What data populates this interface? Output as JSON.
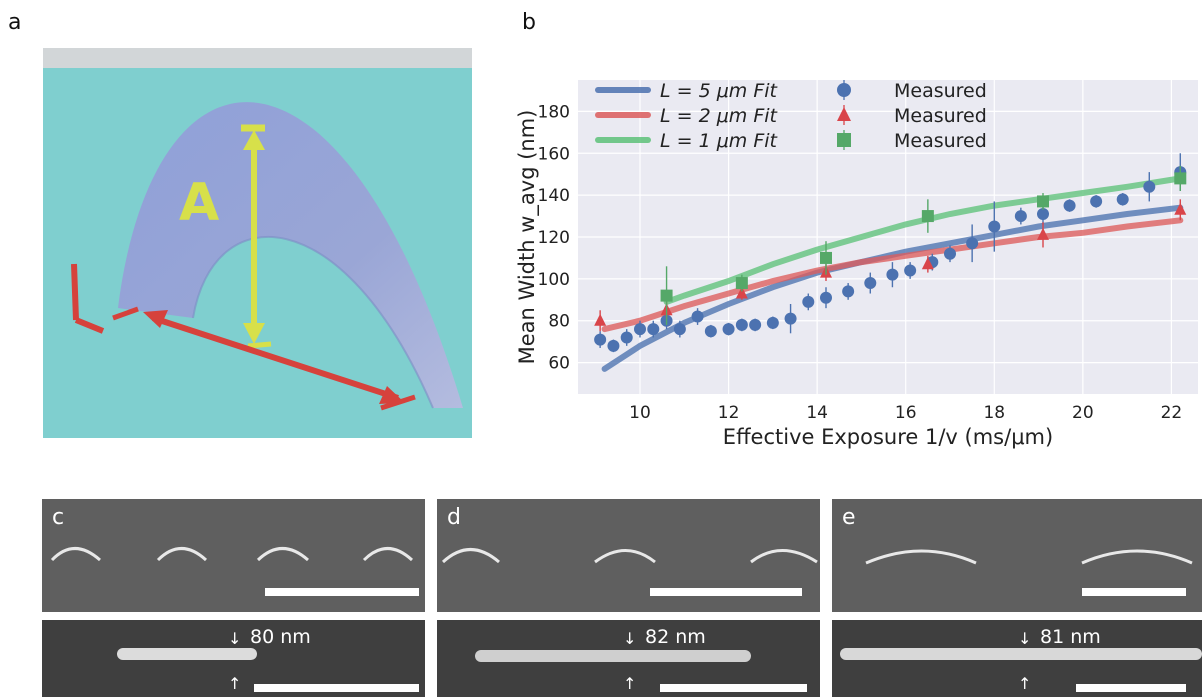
{
  "panels": {
    "a": "a",
    "b": "b",
    "c": "c",
    "d": "d",
    "e": "e"
  },
  "render": {
    "label_A": "A",
    "label_L": "L"
  },
  "chart_data": {
    "type": "scatter",
    "xlabel": "Effective Exposure 1/v (ms/μm)",
    "ylabel": "Mean Width w_avg (nm)",
    "xlim": [
      8.6,
      22.6
    ],
    "ylim": [
      45,
      195
    ],
    "xticks": [
      10,
      12,
      14,
      16,
      18,
      20,
      22
    ],
    "yticks": [
      60,
      80,
      100,
      120,
      140,
      160,
      180
    ],
    "grid": true,
    "legend_position": "top-left",
    "fits": [
      {
        "name": "L = 5 μm Fit",
        "color": "#4c72b0",
        "x": [
          9.2,
          10,
          11,
          12,
          13,
          14,
          15,
          16,
          17,
          18,
          19,
          20,
          21,
          22.2
        ],
        "y": [
          57,
          68,
          79,
          88,
          96,
          103,
          108,
          113,
          117,
          121,
          125,
          128,
          131,
          134
        ]
      },
      {
        "name": "L = 2 μm Fit",
        "color": "#dd5c5c",
        "x": [
          9.2,
          10,
          11,
          12,
          13,
          14,
          15,
          16,
          17,
          18,
          19,
          20,
          21,
          22.2
        ],
        "y": [
          76,
          80,
          87,
          93,
          99,
          104,
          108,
          111,
          114,
          117,
          120,
          122,
          125,
          128
        ]
      },
      {
        "name": "L = 1 μm Fit",
        "color": "#5ec27a",
        "x": [
          10.6,
          11,
          12,
          13,
          14,
          15,
          16,
          17,
          18,
          19,
          20,
          21,
          22.2
        ],
        "y": [
          89,
          92,
          99,
          107,
          114,
          120,
          126,
          131,
          135,
          138,
          141,
          144,
          148
        ]
      }
    ],
    "series": [
      {
        "name": "Measured",
        "marker": "circle",
        "color": "#4c72b0",
        "points": [
          {
            "x": 9.1,
            "y": 71,
            "err": 4
          },
          {
            "x": 9.4,
            "y": 68,
            "err": 3
          },
          {
            "x": 9.7,
            "y": 72,
            "err": 4
          },
          {
            "x": 10.0,
            "y": 76,
            "err": 4
          },
          {
            "x": 10.3,
            "y": 76,
            "err": 4
          },
          {
            "x": 10.6,
            "y": 80,
            "err": 4
          },
          {
            "x": 10.9,
            "y": 76,
            "err": 4
          },
          {
            "x": 11.3,
            "y": 82,
            "err": 4
          },
          {
            "x": 11.6,
            "y": 75,
            "err": 3
          },
          {
            "x": 12.0,
            "y": 76,
            "err": 3
          },
          {
            "x": 12.3,
            "y": 78,
            "err": 3
          },
          {
            "x": 12.6,
            "y": 78,
            "err": 3
          },
          {
            "x": 13.0,
            "y": 79,
            "err": 3
          },
          {
            "x": 13.4,
            "y": 81,
            "err": 7
          },
          {
            "x": 13.8,
            "y": 89,
            "err": 4
          },
          {
            "x": 14.2,
            "y": 91,
            "err": 5
          },
          {
            "x": 14.7,
            "y": 94,
            "err": 4
          },
          {
            "x": 15.2,
            "y": 98,
            "err": 5
          },
          {
            "x": 15.7,
            "y": 102,
            "err": 6
          },
          {
            "x": 16.1,
            "y": 104,
            "err": 4
          },
          {
            "x": 16.6,
            "y": 108,
            "err": 4
          },
          {
            "x": 17.0,
            "y": 112,
            "err": 4
          },
          {
            "x": 17.5,
            "y": 117,
            "err": 9
          },
          {
            "x": 18.0,
            "y": 125,
            "err": 12
          },
          {
            "x": 18.6,
            "y": 130,
            "err": 4
          },
          {
            "x": 19.1,
            "y": 131,
            "err": 5
          },
          {
            "x": 19.7,
            "y": 135,
            "err": 3
          },
          {
            "x": 20.3,
            "y": 137,
            "err": 3
          },
          {
            "x": 20.9,
            "y": 138,
            "err": 3
          },
          {
            "x": 21.5,
            "y": 144,
            "err": 7
          },
          {
            "x": 22.2,
            "y": 151,
            "err": 9
          }
        ]
      },
      {
        "name": "Measured",
        "marker": "triangle",
        "color": "#d9454a",
        "points": [
          {
            "x": 9.1,
            "y": 80,
            "err": 5
          },
          {
            "x": 10.6,
            "y": 85,
            "err": 4
          },
          {
            "x": 12.3,
            "y": 93,
            "err": 3
          },
          {
            "x": 14.2,
            "y": 103,
            "err": 4
          },
          {
            "x": 16.5,
            "y": 107,
            "err": 4
          },
          {
            "x": 19.1,
            "y": 121,
            "err": 6
          },
          {
            "x": 22.2,
            "y": 133,
            "err": 5
          }
        ]
      },
      {
        "name": "Measured",
        "marker": "square",
        "color": "#55a868",
        "points": [
          {
            "x": 10.6,
            "y": 92,
            "err": 14
          },
          {
            "x": 12.3,
            "y": 98,
            "err": 4
          },
          {
            "x": 14.2,
            "y": 110,
            "err": 8
          },
          {
            "x": 16.5,
            "y": 130,
            "err": 8
          },
          {
            "x": 19.1,
            "y": 137,
            "err": 4
          },
          {
            "x": 22.2,
            "y": 148,
            "err": 6
          }
        ]
      }
    ]
  },
  "sem": {
    "c_width": "80 nm",
    "d_width": "82 nm",
    "e_width": "81 nm"
  }
}
